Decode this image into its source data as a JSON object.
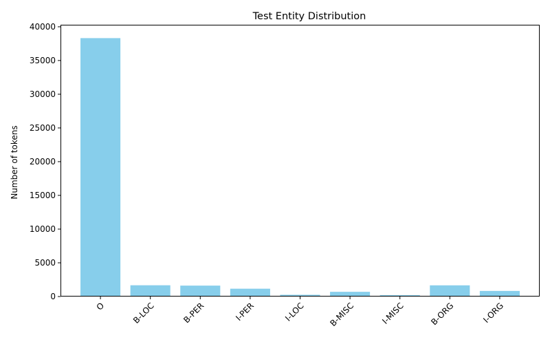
{
  "chart_data": {
    "type": "bar",
    "title": "Test Entity Distribution",
    "xlabel": "",
    "ylabel": "Number of tokens",
    "categories": [
      "O",
      "B-LOC",
      "B-PER",
      "I-PER",
      "I-LOC",
      "B-MISC",
      "I-MISC",
      "B-ORG",
      "I-ORG"
    ],
    "values": [
      38320,
      1670,
      1620,
      1160,
      260,
      700,
      210,
      1660,
      830
    ],
    "ylim": [
      0,
      40300
    ],
    "yticks": [
      0,
      5000,
      10000,
      15000,
      20000,
      25000,
      30000,
      35000,
      40000
    ],
    "bar_color": "#87ceeb",
    "grid": false,
    "legend": "none"
  }
}
